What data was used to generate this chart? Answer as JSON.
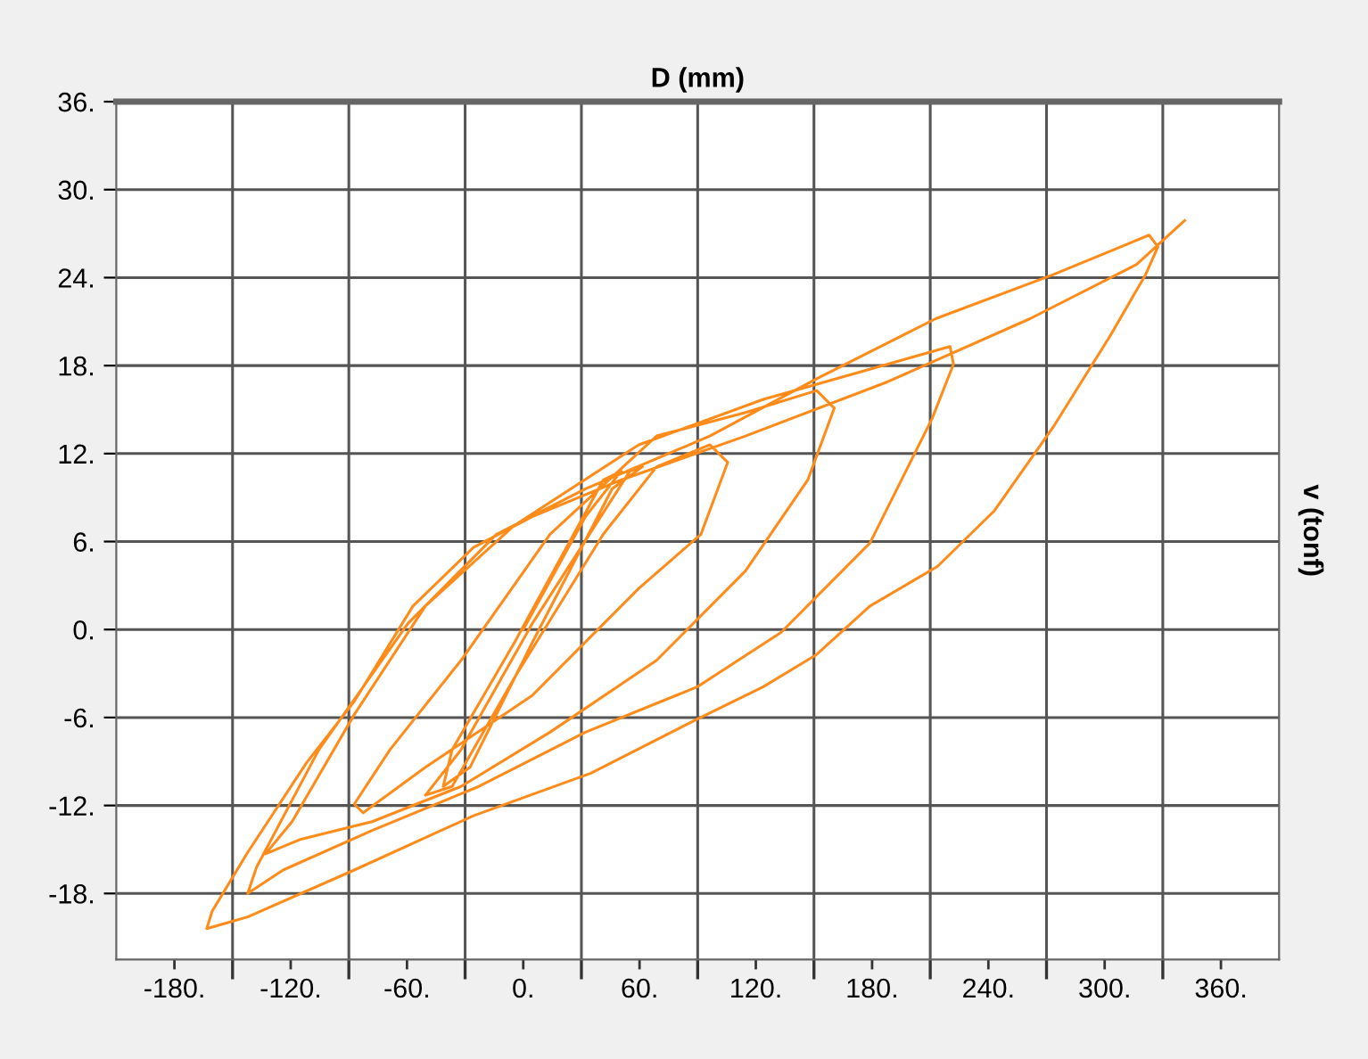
{
  "chart_data": {
    "type": "line",
    "title": "D (mm)",
    "ylabel": "v (tonf)",
    "xlim": [
      -210,
      390
    ],
    "ylim": [
      -22.5,
      36
    ],
    "xticks": [
      {
        "value": -180,
        "label": "-180."
      },
      {
        "value": -150,
        "label": null
      },
      {
        "value": -120,
        "label": "-120."
      },
      {
        "value": -90,
        "label": null
      },
      {
        "value": -60,
        "label": "-60."
      },
      {
        "value": -30,
        "label": null
      },
      {
        "value": 0,
        "label": "0."
      },
      {
        "value": 30,
        "label": null
      },
      {
        "value": 60,
        "label": "60."
      },
      {
        "value": 90,
        "label": null
      },
      {
        "value": 120,
        "label": "120."
      },
      {
        "value": 150,
        "label": null
      },
      {
        "value": 180,
        "label": "180."
      },
      {
        "value": 210,
        "label": null
      },
      {
        "value": 240,
        "label": "240."
      },
      {
        "value": 270,
        "label": null
      },
      {
        "value": 300,
        "label": "300."
      },
      {
        "value": 330,
        "label": null
      },
      {
        "value": 360,
        "label": "360."
      }
    ],
    "yticks": [
      {
        "value": 36,
        "label": "36."
      },
      {
        "value": 30,
        "label": "30."
      },
      {
        "value": 24,
        "label": "24."
      },
      {
        "value": 18,
        "label": "18."
      },
      {
        "value": 12,
        "label": "12."
      },
      {
        "value": 6,
        "label": "6."
      },
      {
        "value": 0,
        "label": "0."
      },
      {
        "value": -6,
        "label": "-6."
      },
      {
        "value": -12,
        "label": "-12."
      },
      {
        "value": -18,
        "label": "-18."
      }
    ],
    "grid": true,
    "series": [
      {
        "color": "#ff8c1a",
        "x": [
          0,
          32.1,
          50.5,
          41.3,
          -4.6,
          -36.7,
          -41.3,
          -27.5,
          4.6,
          45.9,
          61.5,
          55.0,
          4.6,
          -32.1,
          -50.5,
          -36.7,
          -4.6,
          41.3,
          68.8,
          96.3,
          105.5,
          91.7,
          59.6,
          4.6,
          -50.5,
          -82.6,
          -87.2,
          -68.8,
          -32.1,
          13.8,
          68.8,
          114.7,
          151.4,
          160.5,
          146.8,
          114.7,
          68.8,
          13.8,
          -32.1,
          -78.0,
          -114.7,
          -133.0,
          -119.3,
          -87.2,
          -50.5,
          -4.6,
          59.6,
          123.9,
          188.1,
          220.2,
          222.0,
          211.0,
          178.9,
          133.0,
          89.9,
          32.1,
          -22.9,
          -78.0,
          -123.9,
          -142.2,
          -137.6,
          -105.5,
          -59.6,
          -13.8,
          32.1,
          96.3,
          151.4,
          212.8,
          273.4,
          322.9,
          327.5,
          321.1,
          302.7,
          273.4,
          243.1,
          213.7,
          178.9,
          151.4,
          123.9,
          89.9,
          34.9,
          -25.7,
          -87.2,
          -142.2,
          -163.3,
          -160.5,
          -142.2,
          -111.9,
          -87.2,
          -56.9,
          -25.7,
          4.6,
          50.5,
          114.7,
          188.1,
          261.5,
          316.5,
          341.3
        ],
        "values": [
          0,
          7.7,
          10.8,
          10.2,
          -0.9,
          -8.2,
          -10.7,
          -9.4,
          -0.9,
          9.6,
          11.1,
          10.8,
          0.4,
          -8.2,
          -11.3,
          -10.7,
          -3.3,
          6.5,
          11.1,
          12.6,
          11.4,
          6.5,
          2.8,
          -4.5,
          -9.4,
          -12.5,
          -11.9,
          -8.2,
          -2.1,
          6.5,
          13.2,
          14.8,
          16.3,
          15.1,
          10.2,
          4.0,
          -2.1,
          -7.0,
          -10.7,
          -13.1,
          -14.3,
          -15.3,
          -13.1,
          -5.8,
          1.6,
          7.1,
          12.6,
          15.7,
          18.1,
          19.3,
          18.1,
          14.4,
          5.9,
          -0.2,
          -3.9,
          -7.0,
          -10.7,
          -13.7,
          -16.4,
          -18.0,
          -16.2,
          -8.2,
          0.4,
          6.5,
          9.6,
          13.2,
          17.1,
          21.2,
          24.2,
          26.9,
          26.1,
          24.2,
          20.0,
          13.8,
          8.1,
          4.3,
          1.6,
          -1.7,
          -3.9,
          -6.1,
          -9.8,
          -12.7,
          -16.4,
          -19.6,
          -20.4,
          -19.2,
          -15.2,
          -9.1,
          -4.9,
          1.6,
          5.6,
          7.7,
          10.2,
          13.2,
          16.9,
          21.2,
          24.9,
          27.9
        ]
      }
    ]
  }
}
